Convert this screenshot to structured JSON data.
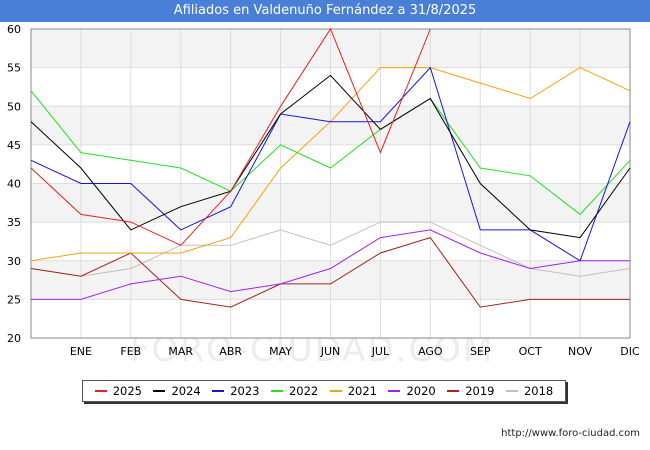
{
  "title": "Afiliados en Valdenuño Fernández a 31/8/2025",
  "watermark": "FORO-CIUDAD.COM",
  "footer_url": "http://www.foro-ciudad.com",
  "chart_data": {
    "type": "line",
    "title": "Afiliados en Valdenuño Fernández a 31/8/2025",
    "xlabel": "",
    "ylabel": "",
    "x_labels": [
      "",
      "ENE",
      "FEB",
      "MAR",
      "ABR",
      "MAY",
      "JUN",
      "JUL",
      "AGO",
      "SEP",
      "OCT",
      "NOV",
      "DIC"
    ],
    "ylim": [
      20,
      60
    ],
    "y_ticks": [
      20,
      25,
      30,
      35,
      40,
      45,
      50,
      55,
      60
    ],
    "grid": true,
    "legend_position": "bottom",
    "series": [
      {
        "name": "2025",
        "color": "#e8201c",
        "values": [
          42,
          36,
          35,
          32,
          39,
          50,
          60,
          44,
          60,
          null,
          null,
          null,
          null
        ]
      },
      {
        "name": "2024",
        "color": "#000000",
        "values": [
          48,
          42,
          34,
          37,
          39,
          49,
          54,
          47,
          51,
          40,
          34,
          33,
          42
        ]
      },
      {
        "name": "2023",
        "color": "#1515e0",
        "values": [
          43,
          40,
          40,
          34,
          37,
          49,
          48,
          48,
          55,
          34,
          34,
          30,
          48
        ]
      },
      {
        "name": "2022",
        "color": "#22e022",
        "values": [
          52,
          44,
          43,
          42,
          39,
          45,
          42,
          47,
          51,
          42,
          41,
          36,
          43
        ]
      },
      {
        "name": "2021",
        "color": "#f5a30a",
        "values": [
          30,
          31,
          31,
          31,
          33,
          42,
          48,
          55,
          55,
          53,
          51,
          55,
          52
        ]
      },
      {
        "name": "2020",
        "color": "#a020f0",
        "values": [
          25,
          25,
          27,
          28,
          26,
          27,
          29,
          33,
          34,
          31,
          29,
          30,
          30
        ]
      },
      {
        "name": "2019",
        "color": "#a0251c",
        "values": [
          29,
          28,
          31,
          25,
          24,
          27,
          27,
          31,
          33,
          24,
          25,
          25,
          25
        ]
      },
      {
        "name": "2018",
        "color": "#c0c0c0",
        "values": [
          29,
          28,
          29,
          32,
          32,
          34,
          32,
          35,
          35,
          32,
          29,
          28,
          29
        ]
      }
    ]
  }
}
